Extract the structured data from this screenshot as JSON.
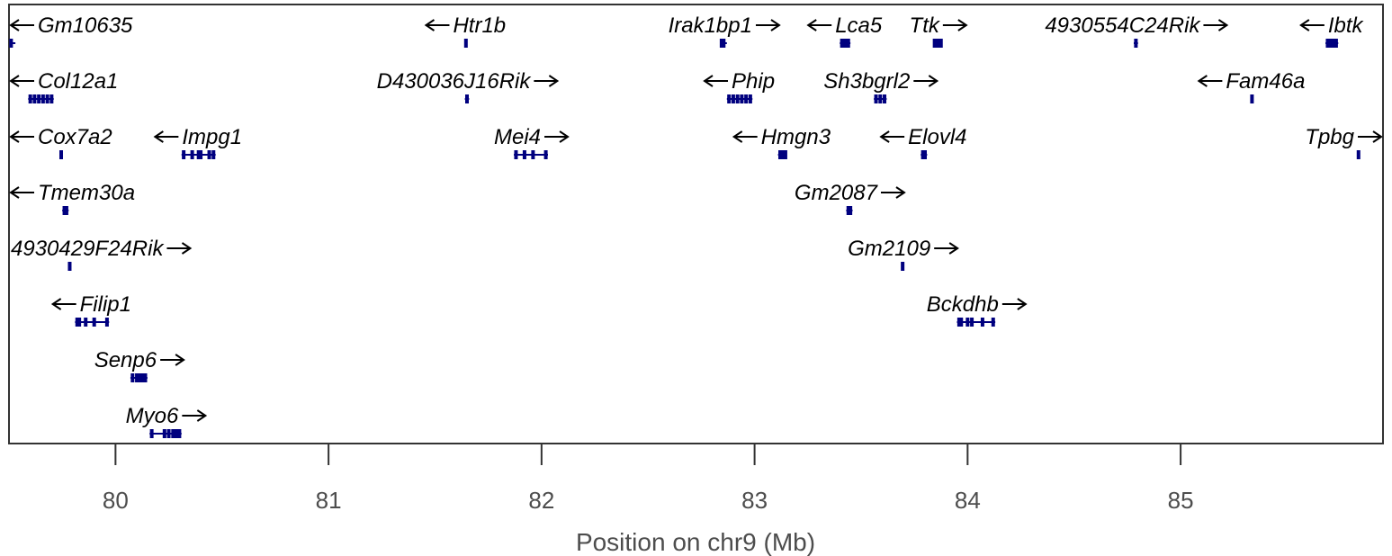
{
  "chart_data": {
    "type": "gene-track",
    "xlabel": "Position on chr9 (Mb)",
    "xlim": [
      79.5,
      85.95
    ],
    "xticks": [
      "80",
      "81",
      "82",
      "83",
      "84",
      "85"
    ],
    "color": "#00007f",
    "genes": [
      {
        "name": "Gm10635",
        "strand": "-",
        "row": 0,
        "start": 79.51,
        "end": 79.53,
        "exons": [
          79.51
        ]
      },
      {
        "name": "Htr1b",
        "strand": "-",
        "row": 0,
        "start": 81.64,
        "end": 81.65,
        "exons": [
          81.645
        ]
      },
      {
        "name": "Irak1bp1",
        "strand": "+",
        "row": 0,
        "start": 82.84,
        "end": 82.87,
        "exons": [
          82.845,
          82.855
        ]
      },
      {
        "name": "Lca5",
        "strand": "-",
        "row": 0,
        "start": 83.4,
        "end": 83.45,
        "exons": [
          83.41,
          83.425,
          83.44
        ]
      },
      {
        "name": "Ttk",
        "strand": "+",
        "row": 0,
        "start": 83.84,
        "end": 83.88,
        "exons": [
          83.845,
          83.855,
          83.865,
          83.875
        ]
      },
      {
        "name": "4930554C24Rik",
        "strand": "+",
        "row": 0,
        "start": 84.78,
        "end": 84.8,
        "exons": [
          84.79
        ]
      },
      {
        "name": "Ibtk",
        "strand": "-",
        "row": 0,
        "start": 85.68,
        "end": 85.74,
        "exons": [
          85.69,
          85.7,
          85.71,
          85.72,
          85.73
        ]
      },
      {
        "name": "Col12a1",
        "strand": "-",
        "row": 1,
        "start": 79.59,
        "end": 79.71,
        "exons": [
          79.6,
          79.62,
          79.64,
          79.66,
          79.68,
          79.7
        ]
      },
      {
        "name": "D430036J16Rik",
        "strand": "+",
        "row": 1,
        "start": 81.64,
        "end": 81.66,
        "exons": [
          81.65
        ]
      },
      {
        "name": "Phip",
        "strand": "-",
        "row": 1,
        "start": 82.87,
        "end": 82.99,
        "exons": [
          82.88,
          82.9,
          82.92,
          82.94,
          82.96,
          82.98
        ]
      },
      {
        "name": "Sh3bgrl2",
        "strand": "+",
        "row": 1,
        "start": 83.56,
        "end": 83.62,
        "exons": [
          83.57,
          83.59,
          83.61
        ]
      },
      {
        "name": "Fam46a",
        "strand": "-",
        "row": 1,
        "start": 85.33,
        "end": 85.34,
        "exons": [
          85.335
        ]
      },
      {
        "name": "Cox7a2",
        "strand": "-",
        "row": 2,
        "start": 79.74,
        "end": 79.75,
        "exons": [
          79.745
        ]
      },
      {
        "name": "Impg1",
        "strand": "-",
        "row": 2,
        "start": 80.31,
        "end": 80.47,
        "exons": [
          80.32,
          80.36,
          80.39,
          80.4,
          80.44,
          80.46
        ]
      },
      {
        "name": "Mei4",
        "strand": "+",
        "row": 2,
        "start": 81.87,
        "end": 82.03,
        "exons": [
          81.88,
          81.92,
          81.96,
          82.02
        ]
      },
      {
        "name": "Hmgn3",
        "strand": "-",
        "row": 2,
        "start": 83.11,
        "end": 83.15,
        "exons": [
          83.12,
          83.135,
          83.145
        ]
      },
      {
        "name": "Elovl4",
        "strand": "-",
        "row": 2,
        "start": 83.78,
        "end": 83.81,
        "exons": [
          83.79,
          83.8
        ]
      },
      {
        "name": "Tpbg",
        "strand": "+",
        "row": 2,
        "start": 85.83,
        "end": 85.84,
        "exons": [
          85.835
        ]
      },
      {
        "name": "Tmem30a",
        "strand": "-",
        "row": 3,
        "start": 79.75,
        "end": 79.78,
        "exons": [
          79.76,
          79.77
        ]
      },
      {
        "name": "Gm2087",
        "strand": "+",
        "row": 3,
        "start": 83.43,
        "end": 83.46,
        "exons": [
          83.44,
          83.45
        ]
      },
      {
        "name": "4930429F24Rik",
        "strand": "+",
        "row": 4,
        "start": 79.78,
        "end": 79.79,
        "exons": [
          79.785
        ]
      },
      {
        "name": "Gm2109",
        "strand": "+",
        "row": 4,
        "start": 83.69,
        "end": 83.7,
        "exons": [
          83.695
        ]
      },
      {
        "name": "Filip1",
        "strand": "-",
        "row": 5,
        "start": 79.81,
        "end": 79.97,
        "exons": [
          79.82,
          79.83,
          79.86,
          79.9,
          79.96
        ]
      },
      {
        "name": "Bckdhb",
        "strand": "+",
        "row": 5,
        "start": 83.95,
        "end": 84.13,
        "exons": [
          83.96,
          83.97,
          84.0,
          84.02,
          84.07,
          84.12
        ]
      },
      {
        "name": "Senp6",
        "strand": "+",
        "row": 6,
        "start": 80.07,
        "end": 80.15,
        "exons": [
          80.08,
          80.1,
          80.11,
          80.12,
          80.13,
          80.14
        ]
      },
      {
        "name": "Myo6",
        "strand": "+",
        "row": 7,
        "start": 80.16,
        "end": 80.31,
        "exons": [
          80.17,
          80.23,
          80.25,
          80.27,
          80.28,
          80.29,
          80.3
        ]
      }
    ]
  }
}
